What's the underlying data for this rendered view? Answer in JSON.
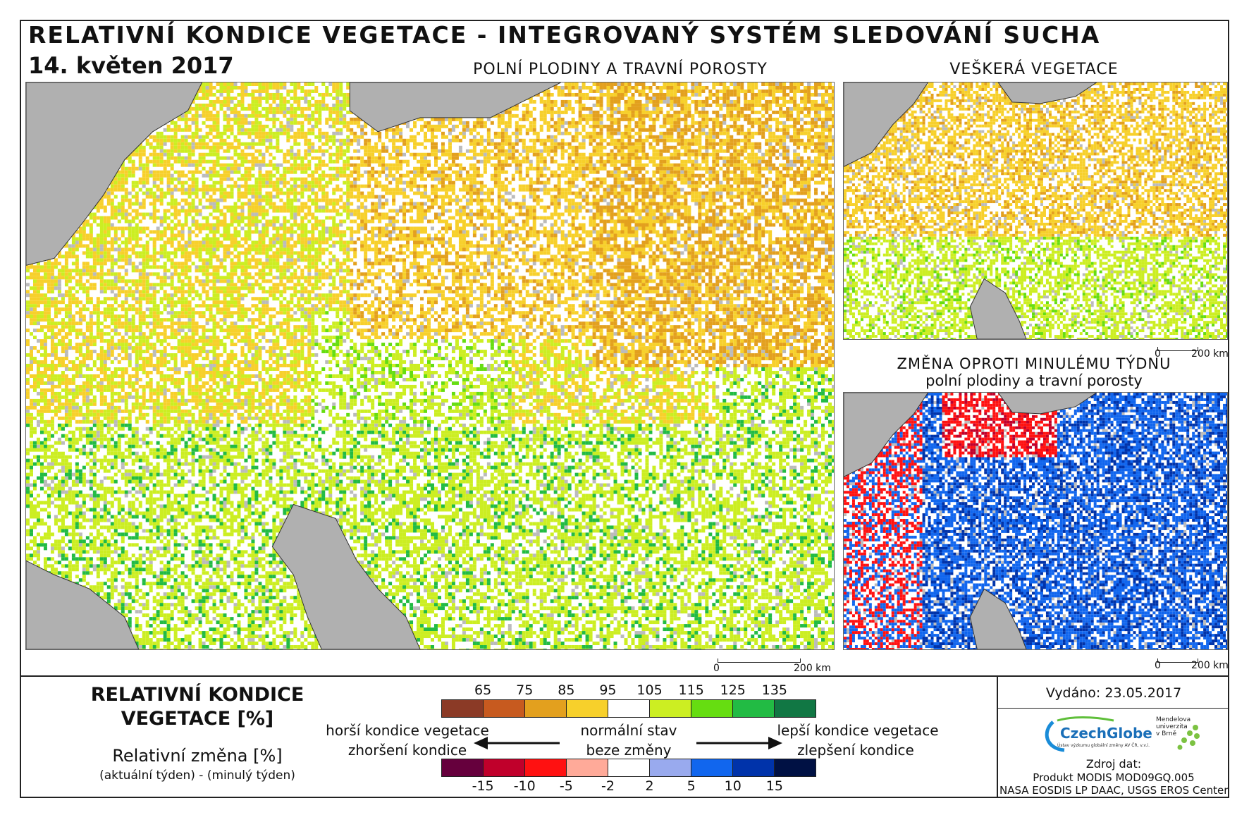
{
  "header": {
    "title": "RELATIVNÍ KONDICE VEGETACE - INTEGROVANÝ SYSTÉM SLEDOVÁNÍ SUCHA",
    "date": "14. květen 2017"
  },
  "maps": {
    "main": {
      "title": "POLNÍ PLODINY A TRAVNÍ POROSTY",
      "scale_zero": "0",
      "scale_end": "200 km"
    },
    "all_vegetation": {
      "title": "VEŠKERÁ VEGETACE",
      "scale_zero": "0",
      "scale_end": "200 km"
    },
    "change": {
      "title_line1": "ZMĚNA OPROTI MINULÉMU TÝDNU",
      "title_line2": "polní plodiny a travní porosty",
      "scale_zero": "0",
      "scale_end": "200 km"
    }
  },
  "legend": {
    "title_line1": "RELATIVNÍ KONDICE",
    "title_line2": "VEGETACE [%]",
    "change_title": "Relativní změna [%]",
    "change_subtitle": "(aktuální týden) - (minulý týden)",
    "condition_ticks": [
      "65",
      "75",
      "85",
      "95",
      "105",
      "115",
      "125",
      "135"
    ],
    "condition_colors": [
      "#8b3a26",
      "#c75a1f",
      "#e3a01e",
      "#f7d02b",
      "#ffffff",
      "#ccee22",
      "#66dd11",
      "#22bb44",
      "#117744"
    ],
    "change_ticks": [
      "-15",
      "-10",
      "-5",
      "-2",
      "2",
      "5",
      "10",
      "15"
    ],
    "change_colors": [
      "#66003d",
      "#c0002b",
      "#ff1111",
      "#ffaa99",
      "#ffffff",
      "#99aaee",
      "#1166ee",
      "#0033aa",
      "#001144"
    ],
    "worse_condition": "horší kondice vegetace",
    "normal_state": "normální stav",
    "better_condition": "lepší kondice vegetace",
    "worsening": "zhoršení kondice",
    "no_change": "beze změny",
    "improvement": "zlepšení kondice"
  },
  "info": {
    "issued": "Vydáno: 23.05.2017",
    "logo_czechglobe": "CzechGlobe",
    "logo_czechglobe_sub": "Ústav výzkumu globální změny AV ČR, v.v.i.",
    "logo_mendel": "Mendelova univerzita v Brně",
    "source_label": "Zdroj dat:",
    "source_line1": "Produkt MODIS MOD09GQ.005",
    "source_line2": "NASA EOSDIS LP DAAC, USGS EROS Center"
  }
}
